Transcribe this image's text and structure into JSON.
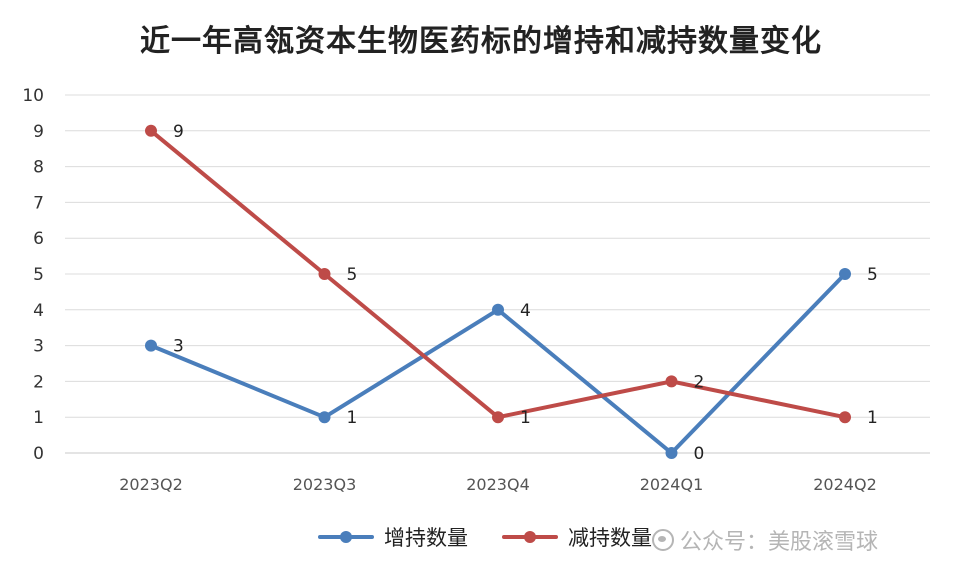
{
  "chart_data": {
    "type": "line",
    "title": "近一年高瓴资本生物医药标的增持和减持数量变化",
    "categories": [
      "2023Q2",
      "2023Q3",
      "2023Q4",
      "2024Q1",
      "2024Q2"
    ],
    "series": [
      {
        "name": "增持数量",
        "values": [
          3,
          1,
          4,
          0,
          5
        ],
        "color": "#4a7ebb"
      },
      {
        "name": "减持数量",
        "values": [
          9,
          5,
          1,
          2,
          1
        ],
        "color": "#be4b48"
      }
    ],
    "ylim": [
      0,
      10
    ],
    "yticks": [
      "0",
      "1",
      "2",
      "3",
      "4",
      "5",
      "6",
      "7",
      "8",
      "9",
      "10"
    ],
    "grid": true,
    "legend_position": "bottom"
  },
  "watermark": "公众号：美股滚雪球"
}
